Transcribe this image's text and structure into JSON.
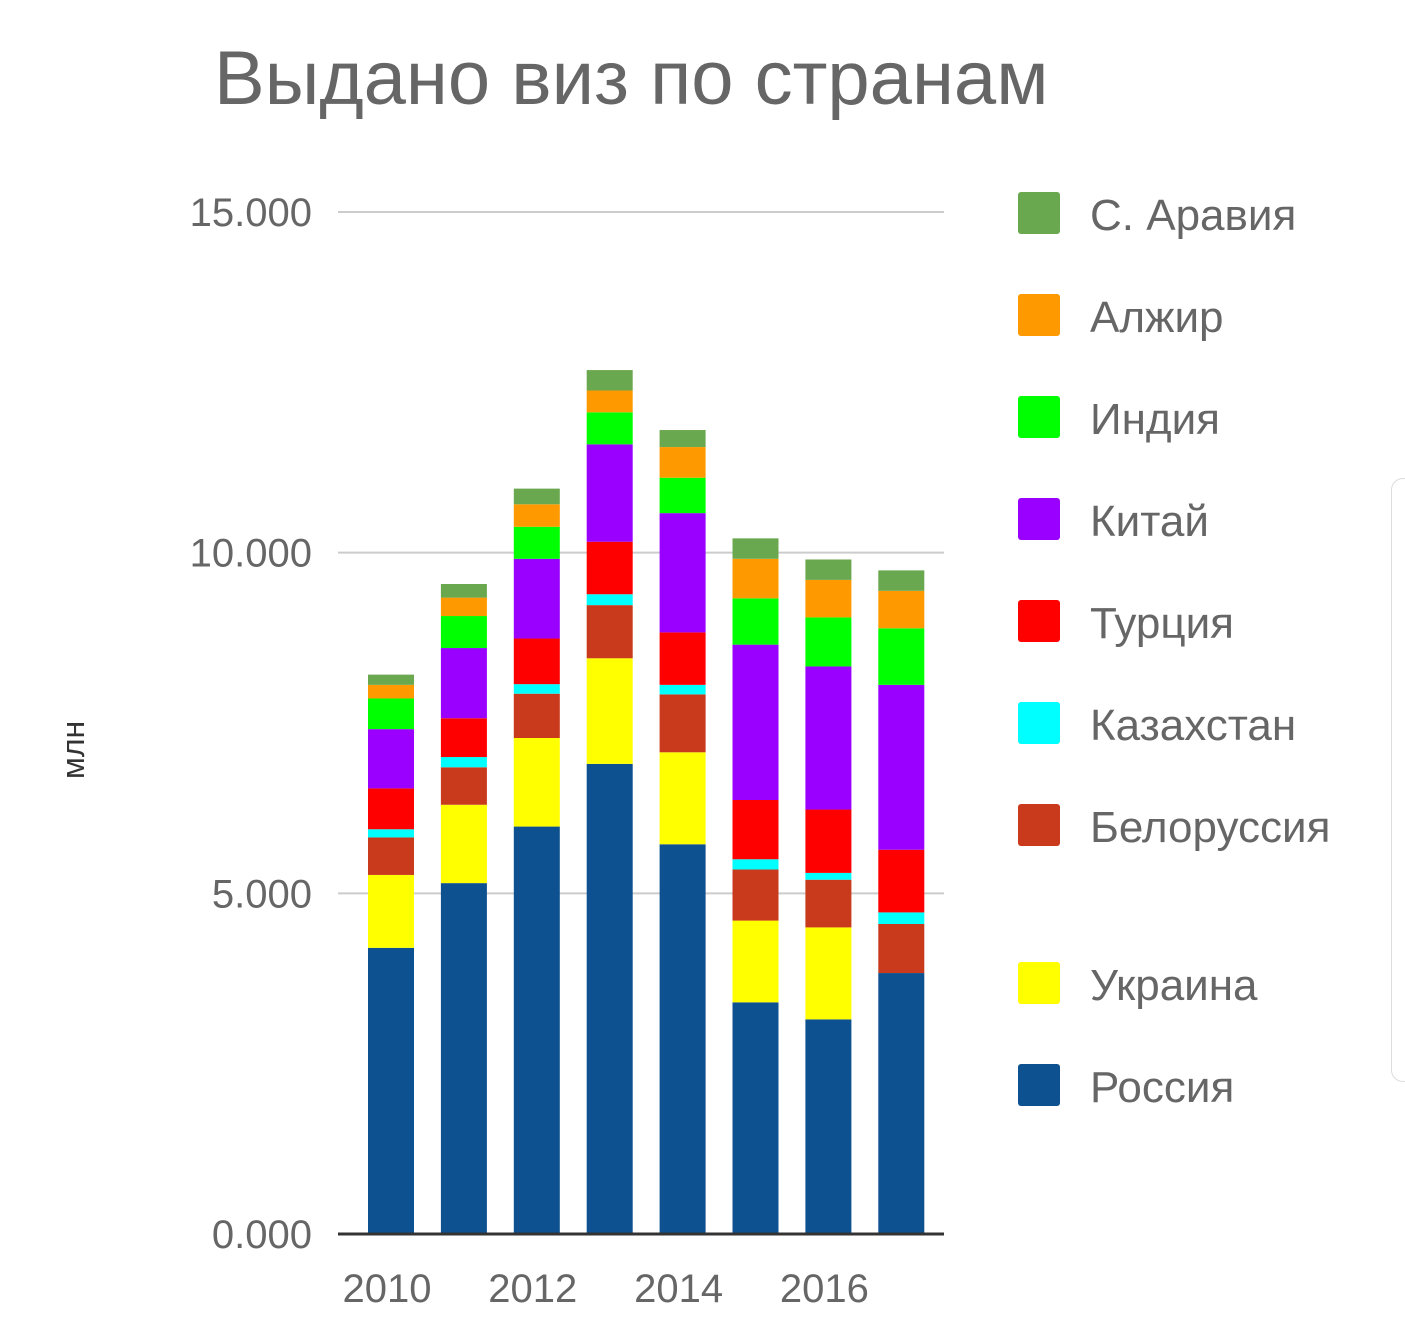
{
  "chart_data": {
    "type": "bar",
    "stacked": true,
    "title": "Выдано виз по странам",
    "ylabel": "млн",
    "ylim": [
      0,
      15
    ],
    "y_ticks": [
      "0.000",
      "5.000",
      "10.000",
      "15.000"
    ],
    "y_tick_values": [
      0,
      5,
      10,
      15
    ],
    "x_tick_labels": [
      "2010",
      "2012",
      "2014",
      "2016"
    ],
    "categories": [
      "2010",
      "2011",
      "2012",
      "2013",
      "2014",
      "2015",
      "2016",
      "2017"
    ],
    "legend_position": "right",
    "grid": true,
    "series": [
      {
        "name": "Россия",
        "color": "#0d5191",
        "values": [
          4.2,
          5.15,
          5.98,
          6.9,
          5.72,
          3.4,
          3.15,
          3.83
        ]
      },
      {
        "name": "Украина",
        "color": "#ffff00",
        "values": [
          1.07,
          1.15,
          1.3,
          1.55,
          1.35,
          1.2,
          1.35,
          0.0
        ]
      },
      {
        "name": "Белоруссия",
        "color": "#c9391b",
        "values": [
          0.55,
          0.55,
          0.65,
          0.78,
          0.85,
          0.75,
          0.7,
          0.72
        ]
      },
      {
        "name": "Казахстан",
        "color": "#00ffff",
        "values": [
          0.12,
          0.15,
          0.14,
          0.16,
          0.14,
          0.15,
          0.1,
          0.17
        ]
      },
      {
        "name": "Турция",
        "color": "#ff0000",
        "values": [
          0.6,
          0.57,
          0.67,
          0.77,
          0.77,
          0.87,
          0.93,
          0.92
        ]
      },
      {
        "name": "Китай",
        "color": "#9900ff",
        "values": [
          0.87,
          1.03,
          1.17,
          1.43,
          1.75,
          2.28,
          2.1,
          2.42
        ]
      },
      {
        "name": "Индия",
        "color": "#00ff00",
        "values": [
          0.45,
          0.47,
          0.47,
          0.47,
          0.52,
          0.68,
          0.72,
          0.83
        ]
      },
      {
        "name": "Алжир",
        "color": "#ff9900",
        "values": [
          0.2,
          0.27,
          0.33,
          0.32,
          0.45,
          0.58,
          0.55,
          0.55
        ]
      },
      {
        "name": "С. Аравия",
        "color": "#6aa84f",
        "values": [
          0.15,
          0.2,
          0.23,
          0.3,
          0.25,
          0.3,
          0.3,
          0.3
        ]
      }
    ]
  }
}
